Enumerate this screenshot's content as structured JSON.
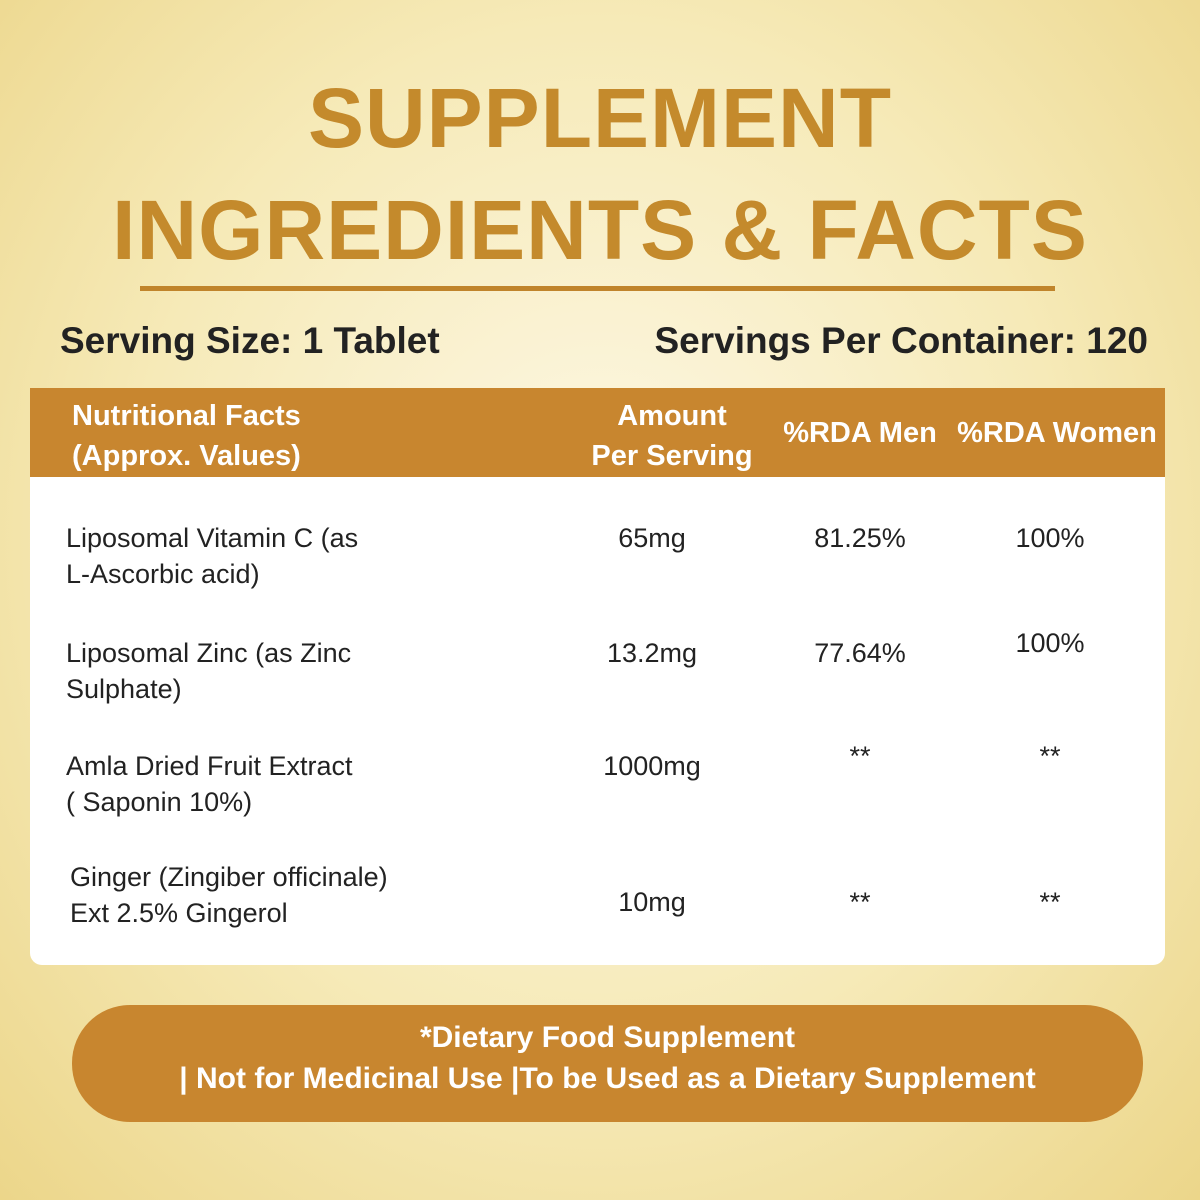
{
  "header": {
    "title": [
      "SUPPLEMENT",
      "INGREDIENTS & FACTS"
    ]
  },
  "serving": {
    "size": "Serving Size: 1 Tablet",
    "per_container": "Servings Per Container: 120"
  },
  "table": {
    "columns": [
      [
        "Nutritional Facts",
        "(Approx. Values)"
      ],
      [
        "Amount",
        "Per Serving"
      ],
      [
        "%RDA Men"
      ],
      [
        "%RDA Women"
      ]
    ],
    "rows": [
      [
        [
          "Liposomal Vitamin C (as",
          "L-Ascorbic acid)"
        ],
        "65mg",
        "81.25%",
        "100%"
      ],
      [
        [
          "Liposomal Zinc (as Zinc",
          "Sulphate)"
        ],
        "13.2mg",
        "77.64%",
        "100%"
      ],
      [
        [
          "Amla Dried Fruit Extract",
          "( Saponin 10%)"
        ],
        "1000mg",
        "**",
        "**"
      ],
      [
        [
          "Ginger (Zingiber officinale)",
          "Ext 2.5% Gingerol"
        ],
        "10mg",
        "**",
        "**"
      ]
    ]
  },
  "footer": {
    "lines": [
      "*Dietary Food Supplement",
      "| Not for Medicinal Use |To be Used as a Dietary Supplement"
    ]
  }
}
